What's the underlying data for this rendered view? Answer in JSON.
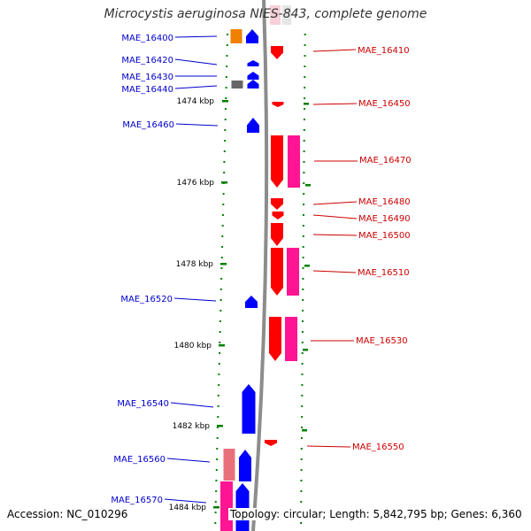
{
  "title": "Microcystis aeruginosa NIES-843, complete genome",
  "accession": "Accession: NC_010296",
  "topology": "Topology: circular; Length: 5,842,795 bp; Genes: 6,360",
  "colors": {
    "left_label": "#0000cc",
    "right_label": "#cc0000",
    "backbone": "#8c8c8c",
    "tick": "#008000",
    "forward_gene": "#0000ff",
    "reverse_gene": "#ff0000",
    "reverse_partner": "#ff1493",
    "forward_partner_pink": "#e8707a",
    "forward_partner_magenta": "#ff1493",
    "orange_gene": "#f08000",
    "gray_gene": "#666666"
  },
  "kbp_ticks": [
    "1474 kbp",
    "1476 kbp",
    "1478 kbp",
    "1480 kbp",
    "1482 kbp",
    "1484 kbp"
  ],
  "genes_left": [
    "MAE_16400",
    "MAE_16420",
    "MAE_16430",
    "MAE_16440",
    "MAE_16460",
    "MAE_16520",
    "MAE_16540",
    "MAE_16560",
    "MAE_16570"
  ],
  "genes_right": [
    "MAE_16410",
    "MAE_16450",
    "MAE_16470",
    "MAE_16480",
    "MAE_16490",
    "MAE_16500",
    "MAE_16510",
    "MAE_16530",
    "MAE_16550"
  ]
}
